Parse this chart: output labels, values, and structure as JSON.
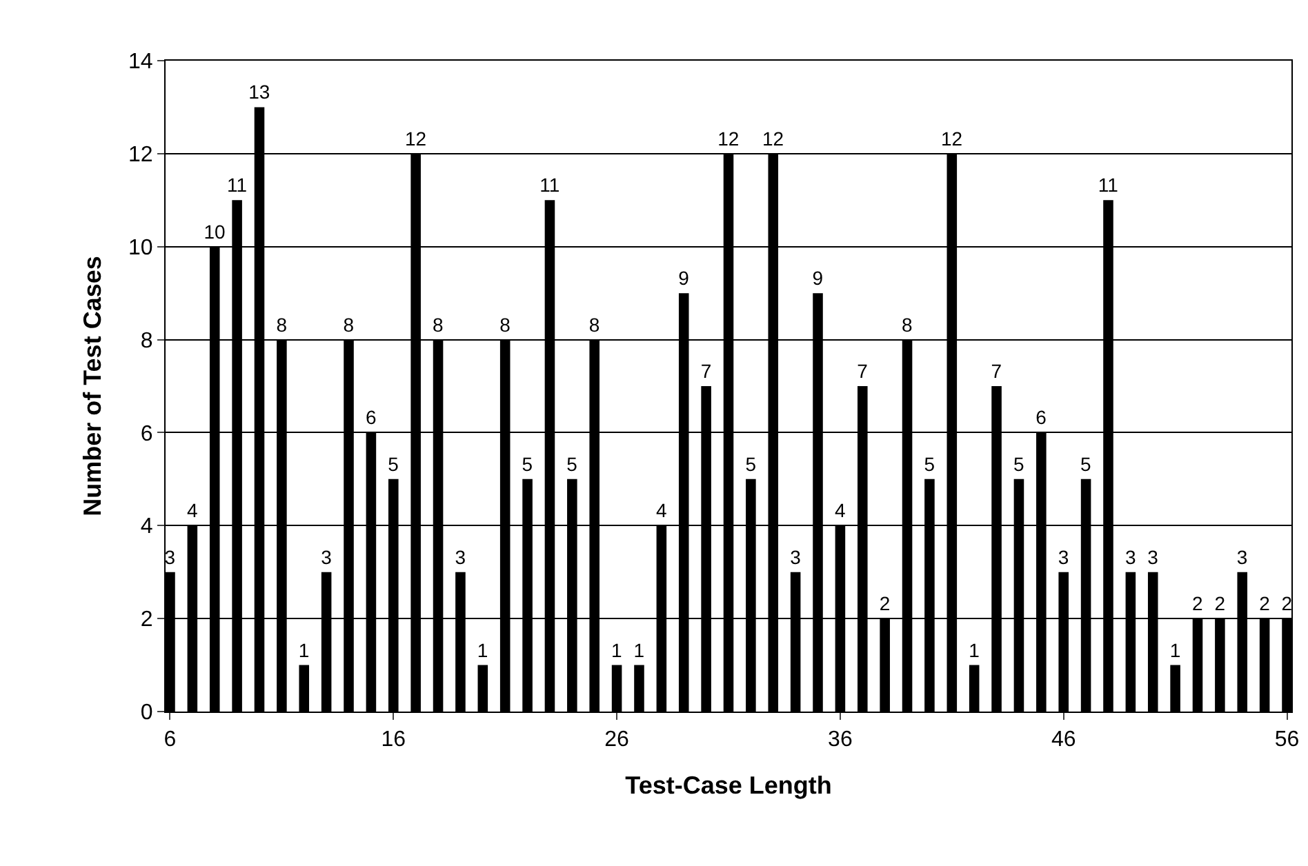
{
  "chart_data": {
    "type": "bar",
    "xlabel": "Test-Case Length",
    "ylabel": "Number of Test Cases",
    "x": [
      6,
      7,
      8,
      9,
      10,
      11,
      12,
      13,
      14,
      15,
      16,
      17,
      18,
      19,
      20,
      21,
      22,
      23,
      24,
      25,
      26,
      27,
      28,
      29,
      30,
      31,
      32,
      33,
      34,
      35,
      36,
      37,
      38,
      39,
      40,
      41,
      42,
      43,
      44,
      45,
      46,
      47,
      48,
      49,
      50,
      51,
      52,
      53,
      54,
      55,
      56
    ],
    "values": [
      3,
      4,
      10,
      11,
      13,
      8,
      1,
      3,
      8,
      6,
      5,
      12,
      8,
      3,
      1,
      8,
      5,
      11,
      5,
      8,
      1,
      1,
      4,
      9,
      7,
      12,
      5,
      12,
      3,
      9,
      4,
      7,
      2,
      8,
      5,
      12,
      1,
      7,
      5,
      6,
      3,
      5,
      11,
      3,
      3,
      1,
      2,
      2,
      3,
      2,
      2
    ],
    "color": "#000000",
    "data_labels": true,
    "grid": "y",
    "legend": false,
    "xlim": [
      5.8,
      56.2
    ],
    "xticks": [
      6,
      16,
      26,
      36,
      46,
      56
    ],
    "ylim": [
      0,
      14
    ],
    "yticks": [
      0,
      2,
      4,
      6,
      8,
      10,
      12,
      14
    ]
  }
}
